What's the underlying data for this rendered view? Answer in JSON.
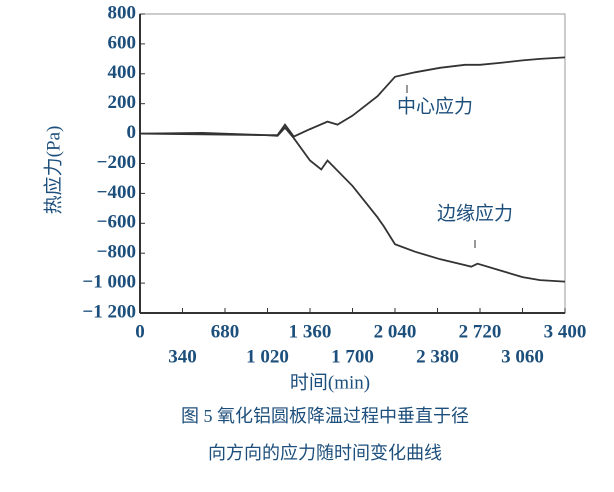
{
  "chart_data": {
    "type": "line",
    "xlabel": "时间(min)",
    "ylabel": "热应力(Pa)",
    "caption": [
      "图 5 氧化铝圆板降温过程中垂直于径",
      "向方向的应力随时间变化曲线"
    ],
    "annotations": [
      "中心应力",
      "边缘应力"
    ],
    "xlim": [
      0,
      3400
    ],
    "ylim": [
      -1200,
      800
    ],
    "xticks": [
      0,
      340,
      680,
      {
        "value": 1020,
        "label": "1 020"
      },
      {
        "value": 1360,
        "label": "1 360"
      },
      {
        "value": 1700,
        "label": "1 700"
      },
      {
        "value": 2040,
        "label": "2 040"
      },
      {
        "value": 2380,
        "label": "2 380"
      },
      {
        "value": 2720,
        "label": "2 720"
      },
      {
        "value": 3060,
        "label": "3 060"
      },
      {
        "value": 3400,
        "label": "3 400"
      }
    ],
    "yticks": [
      800,
      600,
      400,
      200,
      0,
      {
        "value": -200,
        "label": "−200"
      },
      {
        "value": -400,
        "label": "−400"
      },
      {
        "value": -600,
        "label": "−600"
      },
      {
        "value": -800,
        "label": "−800"
      },
      {
        "value": -1000,
        "label": "−1 000"
      },
      {
        "value": -1200,
        "label": "−1 200"
      }
    ],
    "series": [
      {
        "color": "#333333",
        "x": [
          0,
          500,
          1000,
          1100,
          1160,
          1230,
          1360,
          1500,
          1580,
          1700,
          1900,
          2040,
          2200,
          2400,
          2600,
          2720,
          2900,
          3060,
          3200,
          3400
        ],
        "values": [
          0,
          5,
          -10,
          -10,
          60,
          -20,
          30,
          80,
          60,
          120,
          250,
          380,
          410,
          440,
          460,
          460,
          475,
          490,
          500,
          510
        ]
      },
      {
        "color": "#333333",
        "x": [
          0,
          500,
          1000,
          1100,
          1160,
          1230,
          1360,
          1450,
          1500,
          1700,
          1900,
          1950,
          2040,
          2200,
          2400,
          2600,
          2650,
          2700,
          2900,
          3060,
          3200,
          3400
        ],
        "values": [
          0,
          -5,
          -10,
          -15,
          40,
          -30,
          -180,
          -240,
          -180,
          -350,
          -560,
          -620,
          -740,
          -790,
          -840,
          -880,
          -890,
          -870,
          -920,
          -960,
          -980,
          -990
        ]
      }
    ]
  }
}
